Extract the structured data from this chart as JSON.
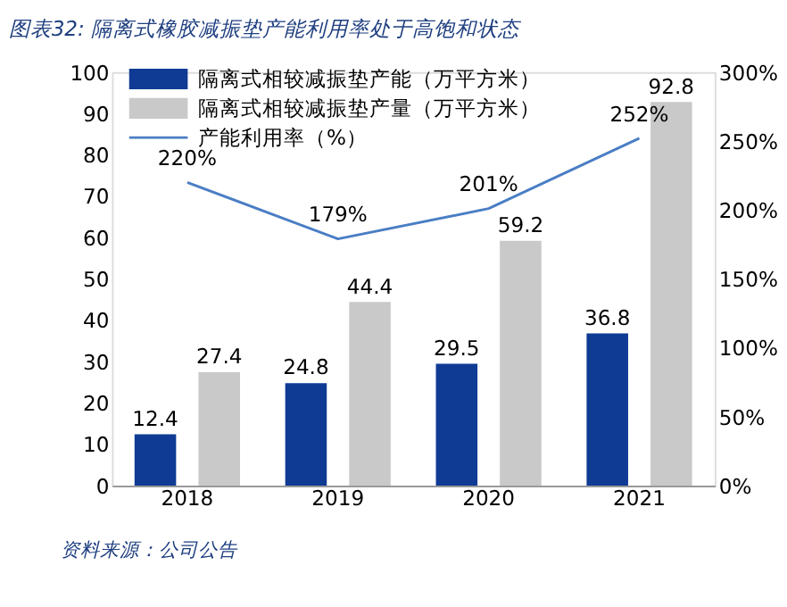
{
  "chart_data": {
    "type": "bar",
    "title": "图表32:  隔离式橡胶减振垫产能利用率处于高饱和状态",
    "categories": [
      "2018",
      "2019",
      "2020",
      "2021"
    ],
    "series": [
      {
        "name": "隔离式相较减振垫产能（万平方米）",
        "color": "#0f3b94",
        "values": [
          12.4,
          24.8,
          29.5,
          36.8
        ],
        "value_labels": [
          "12.4",
          "24.8",
          "29.5",
          "36.8"
        ]
      },
      {
        "name": "隔离式相较减振垫产量（万平方米）",
        "color": "#c9c9c9",
        "values": [
          27.4,
          44.4,
          59.2,
          92.8
        ],
        "value_labels": [
          "27.4",
          "44.4",
          "59.2",
          "92.8"
        ]
      },
      {
        "name": "产能利用率（%）",
        "type": "line",
        "axis": "y2",
        "color": "#4a7ec4",
        "values": [
          220,
          179,
          201,
          252
        ],
        "value_labels": [
          "220%",
          "179%",
          "201%",
          "252%"
        ]
      }
    ],
    "ylim": [
      0,
      100
    ],
    "yticks": [
      0,
      10,
      20,
      30,
      40,
      50,
      60,
      70,
      80,
      90,
      100
    ],
    "y2lim": [
      0,
      300
    ],
    "y2ticks": [
      {
        "value": 0,
        "label": "0%"
      },
      {
        "value": 50,
        "label": "50%"
      },
      {
        "value": 100,
        "label": "100%"
      },
      {
        "value": 150,
        "label": "150%"
      },
      {
        "value": 200,
        "label": "200%"
      },
      {
        "value": 250,
        "label": "250%"
      },
      {
        "value": 300,
        "label": "300%"
      }
    ],
    "grid": false,
    "legend": "top left",
    "annotations": [
      "资料来源：公司公告"
    ]
  }
}
